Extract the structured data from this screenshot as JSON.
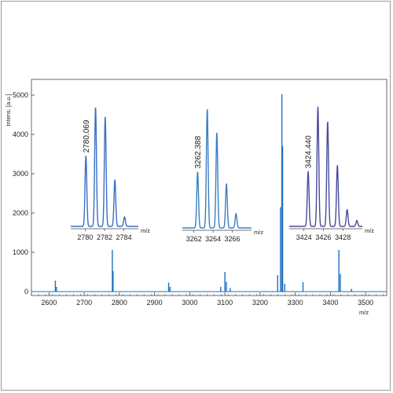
{
  "chart_data": {
    "type": "line",
    "main": {
      "xlabel": "m/z",
      "ylabel": "Intens. [a.u.]",
      "xlim": [
        2550,
        3560
      ],
      "ylim": [
        -100,
        5400
      ],
      "x_ticks": [
        2600,
        2700,
        2800,
        2900,
        3000,
        3100,
        3200,
        3300,
        3400,
        3500
      ],
      "y_ticks": [
        0,
        1000,
        2000,
        3000,
        4000,
        5000
      ],
      "color": "#1f6fc0",
      "peaks": [
        {
          "x": 2618,
          "y": 280
        },
        {
          "x": 2621,
          "y": 120
        },
        {
          "x": 2780,
          "y": 1060
        },
        {
          "x": 2782,
          "y": 520
        },
        {
          "x": 2940,
          "y": 230
        },
        {
          "x": 2944,
          "y": 120
        },
        {
          "x": 3100,
          "y": 500
        },
        {
          "x": 3104,
          "y": 250
        },
        {
          "x": 3088,
          "y": 120
        },
        {
          "x": 3115,
          "y": 90
        },
        {
          "x": 3250,
          "y": 420
        },
        {
          "x": 3258,
          "y": 2150
        },
        {
          "x": 3262,
          "y": 5020
        },
        {
          "x": 3264,
          "y": 3700
        },
        {
          "x": 3270,
          "y": 200
        },
        {
          "x": 3322,
          "y": 240
        },
        {
          "x": 3424,
          "y": 1060
        },
        {
          "x": 3428,
          "y": 450
        },
        {
          "x": 3460,
          "y": 70
        }
      ]
    },
    "insets": [
      {
        "label": "2780.069",
        "xlabel": "m/z",
        "xlim": [
          2778.5,
          2785.5
        ],
        "x_ticks": [
          2780,
          2782,
          2784
        ],
        "color": "#3a6fc4",
        "peaks": [
          {
            "x": 2780.07,
            "y": 0.59
          },
          {
            "x": 2781.07,
            "y": 1.0
          },
          {
            "x": 2782.07,
            "y": 0.92
          },
          {
            "x": 2783.07,
            "y": 0.39
          },
          {
            "x": 2784.07,
            "y": 0.08
          }
        ]
      },
      {
        "label": "3262.388",
        "xlabel": "m/z",
        "xlim": [
          3260.8,
          3268.0
        ],
        "x_ticks": [
          3262,
          3264,
          3266
        ],
        "color": "#3a7fc4",
        "peaks": [
          {
            "x": 3262.39,
            "y": 0.47
          },
          {
            "x": 3263.39,
            "y": 1.0
          },
          {
            "x": 3264.39,
            "y": 0.8
          },
          {
            "x": 3265.39,
            "y": 0.37
          },
          {
            "x": 3266.39,
            "y": 0.12
          }
        ]
      },
      {
        "label": "3424.440",
        "xlabel": "m/z",
        "xlim": [
          3422.5,
          3430.0
        ],
        "x_ticks": [
          3424,
          3426,
          3428
        ],
        "color": "#4a4a9a",
        "peaks": [
          {
            "x": 3424.44,
            "y": 0.46
          },
          {
            "x": 3425.44,
            "y": 1.0
          },
          {
            "x": 3426.44,
            "y": 0.88
          },
          {
            "x": 3427.44,
            "y": 0.51
          },
          {
            "x": 3428.44,
            "y": 0.14
          },
          {
            "x": 3429.44,
            "y": 0.05
          }
        ]
      }
    ]
  }
}
